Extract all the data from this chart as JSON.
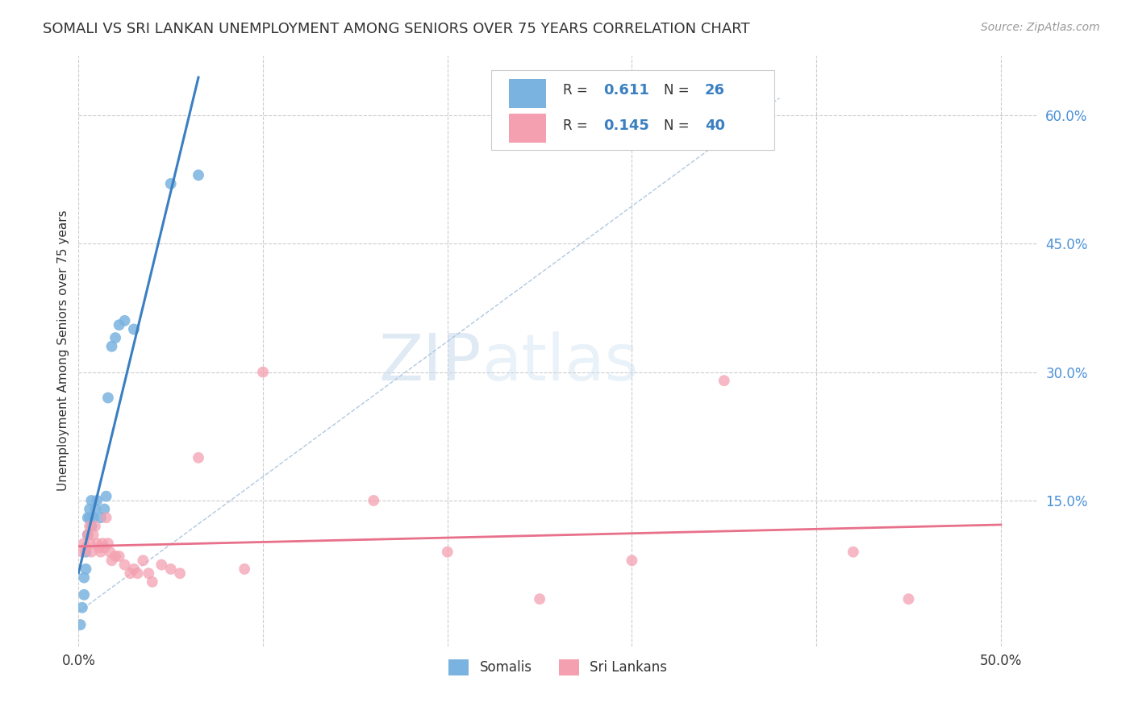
{
  "title": "SOMALI VS SRI LANKAN UNEMPLOYMENT AMONG SENIORS OVER 75 YEARS CORRELATION CHART",
  "source": "Source: ZipAtlas.com",
  "ylabel": "Unemployment Among Seniors over 75 years",
  "xlim": [
    0.0,
    0.52
  ],
  "ylim": [
    -0.02,
    0.67
  ],
  "watermark_zip": "ZIP",
  "watermark_atlas": "atlas",
  "somali_color": "#7ab3e0",
  "srilanka_color": "#f4a0b0",
  "somali_line_color": "#3a7fc1",
  "srilanka_line_color": "#e8708a",
  "trend_line_dashed_color": "#b0c8e0",
  "somali_R": 0.611,
  "somali_N": 26,
  "srilanka_R": 0.145,
  "srilanka_N": 40,
  "somali_x": [
    0.001,
    0.002,
    0.003,
    0.003,
    0.004,
    0.004,
    0.005,
    0.005,
    0.006,
    0.006,
    0.007,
    0.007,
    0.008,
    0.009,
    0.01,
    0.012,
    0.014,
    0.015,
    0.016,
    0.018,
    0.02,
    0.022,
    0.025,
    0.03,
    0.05,
    0.065
  ],
  "somali_y": [
    0.005,
    0.025,
    0.04,
    0.06,
    0.07,
    0.09,
    0.11,
    0.13,
    0.13,
    0.14,
    0.12,
    0.15,
    0.13,
    0.14,
    0.15,
    0.13,
    0.14,
    0.155,
    0.27,
    0.33,
    0.34,
    0.355,
    0.36,
    0.35,
    0.52,
    0.53
  ],
  "srilanka_x": [
    0.002,
    0.003,
    0.004,
    0.005,
    0.006,
    0.006,
    0.007,
    0.008,
    0.009,
    0.01,
    0.011,
    0.012,
    0.013,
    0.014,
    0.015,
    0.016,
    0.017,
    0.018,
    0.02,
    0.022,
    0.025,
    0.028,
    0.03,
    0.032,
    0.035,
    0.038,
    0.04,
    0.045,
    0.05,
    0.055,
    0.065,
    0.09,
    0.1,
    0.16,
    0.2,
    0.25,
    0.3,
    0.35,
    0.42,
    0.45
  ],
  "srilanka_y": [
    0.09,
    0.1,
    0.095,
    0.11,
    0.1,
    0.12,
    0.09,
    0.11,
    0.12,
    0.1,
    0.095,
    0.09,
    0.1,
    0.095,
    0.13,
    0.1,
    0.09,
    0.08,
    0.085,
    0.085,
    0.075,
    0.065,
    0.07,
    0.065,
    0.08,
    0.065,
    0.055,
    0.075,
    0.07,
    0.065,
    0.2,
    0.07,
    0.3,
    0.15,
    0.09,
    0.035,
    0.08,
    0.29,
    0.09,
    0.035
  ],
  "background_color": "#ffffff",
  "grid_color": "#cccccc",
  "ytick_vals": [
    0.15,
    0.3,
    0.45,
    0.6
  ],
  "ytick_labels": [
    "15.0%",
    "30.0%",
    "45.0%",
    "60.0%"
  ],
  "xtick_vals": [
    0.0,
    0.1,
    0.2,
    0.3,
    0.4,
    0.5
  ],
  "xtick_labels": [
    "0.0%",
    "",
    "",
    "",
    "",
    "50.0%"
  ]
}
